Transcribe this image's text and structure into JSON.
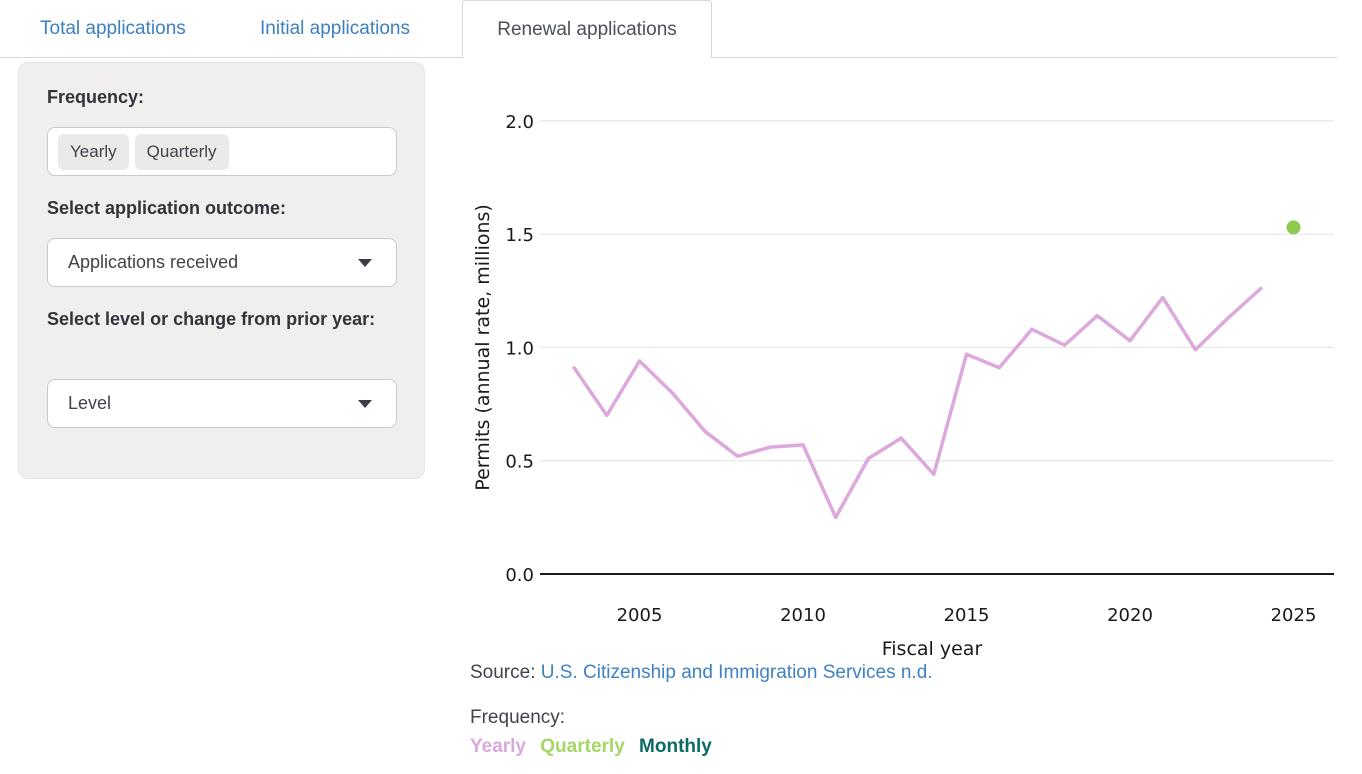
{
  "tabs": [
    {
      "label": "Total applications",
      "active": false
    },
    {
      "label": "Initial applications",
      "active": false
    },
    {
      "label": "Renewal applications",
      "active": true
    }
  ],
  "sidebar": {
    "frequency_label": "Frequency:",
    "frequency_options": [
      "Yearly",
      "Quarterly"
    ],
    "outcome_label": "Select application outcome:",
    "outcome_value": "Applications received",
    "level_label": "Select level or change from prior year:",
    "level_value": "Level"
  },
  "chart_data": {
    "type": "line",
    "title": "",
    "xlabel": "Fiscal year",
    "ylabel": "Permits (annual rate, millions)",
    "xlim": [
      2002.5,
      2026.5
    ],
    "ylim": [
      0.0,
      2.0
    ],
    "xticks": [
      2005,
      2010,
      2015,
      2020,
      2025
    ],
    "yticks": [
      0.0,
      0.5,
      1.0,
      1.5,
      2.0
    ],
    "grid": "horizontal",
    "legend_position": "none",
    "series": [
      {
        "name": "Yearly",
        "type": "line",
        "color": "#dda8dc",
        "x": [
          2003,
          2004,
          2005,
          2006,
          2007,
          2008,
          2009,
          2010,
          2011,
          2012,
          2013,
          2014,
          2015,
          2016,
          2017,
          2018,
          2019,
          2020,
          2021,
          2022,
          2023,
          2024
        ],
        "y": [
          0.91,
          0.7,
          0.94,
          0.8,
          0.63,
          0.52,
          0.56,
          0.57,
          0.25,
          0.51,
          0.6,
          0.44,
          0.97,
          0.91,
          1.08,
          1.01,
          1.14,
          1.03,
          1.22,
          0.99,
          1.13,
          1.26
        ]
      },
      {
        "name": "Latest yearly point",
        "type": "point",
        "color": "#8ecb4d",
        "x": [
          2025
        ],
        "y": [
          1.53
        ]
      }
    ]
  },
  "footer": {
    "source_prefix": "Source:",
    "source_link": "U.S. Citizenship and Immigration Services n.d.",
    "frequency_label": "Frequency:",
    "legend": [
      {
        "label": "Yearly",
        "color": "#d9a8de"
      },
      {
        "label": "Quarterly",
        "color": "#a5d666"
      },
      {
        "label": "Monthly",
        "color": "#0c6b63"
      }
    ]
  },
  "colors": {
    "tab_link_blue": "#3d80c2",
    "active_tab_text": "#4b5058",
    "panel_background": "#f0efee",
    "line_pink": "#dda8dc",
    "dot_green": "#8ecb4d",
    "axis_black": "#1a1a1a",
    "gridline_gray": "#e7e6e6",
    "source_link_blue": "#3e82c4"
  }
}
